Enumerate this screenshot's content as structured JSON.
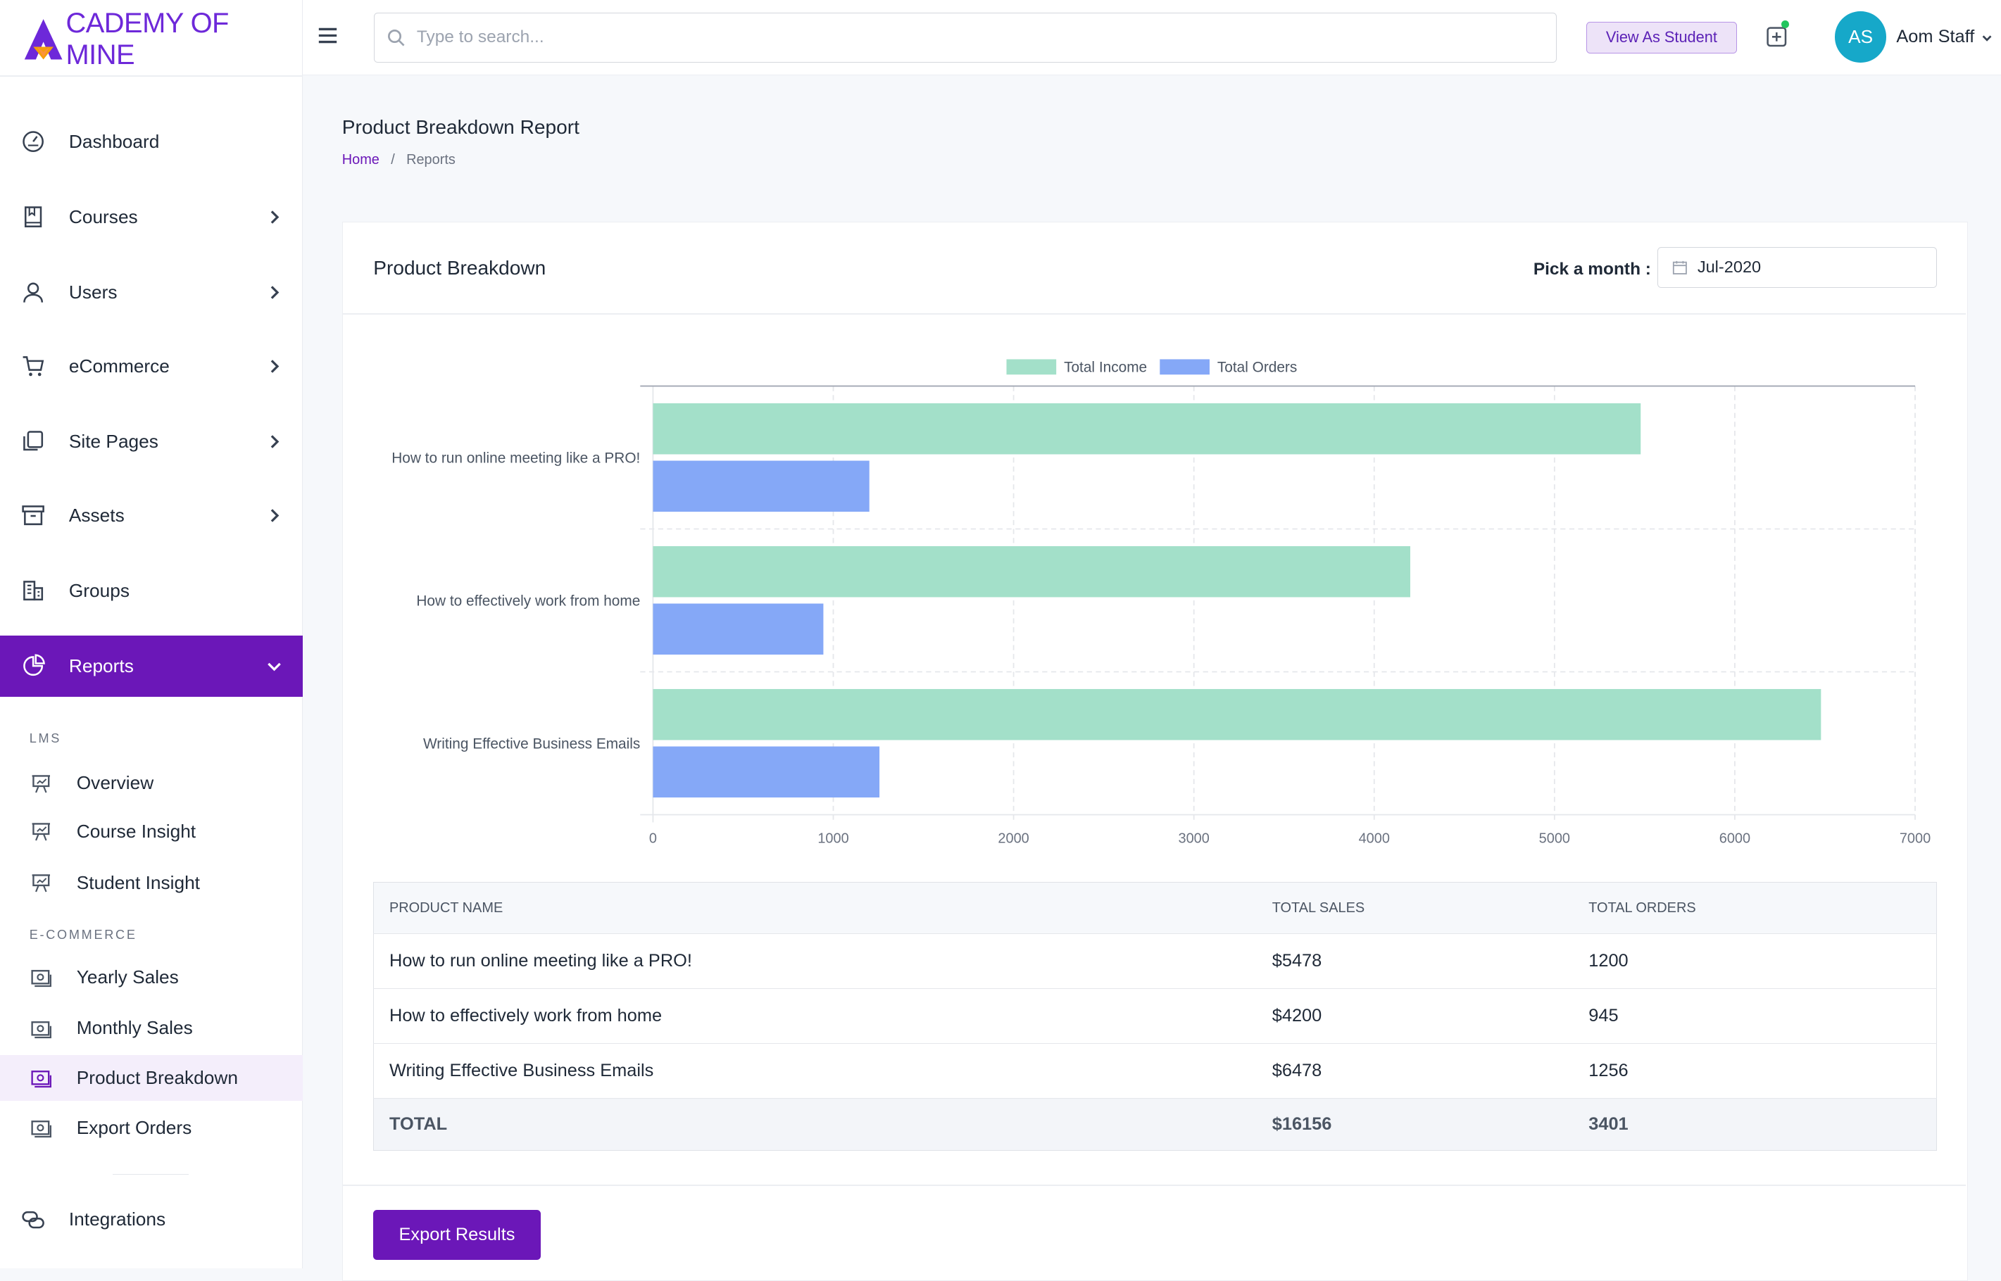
{
  "brand": {
    "logo_text": "CADEMY OF MINE",
    "colors": {
      "primary": "#6b17b8",
      "income": "#a3e0c9",
      "orders": "#85a8f7",
      "avatar": "#16a8c9"
    }
  },
  "topbar": {
    "search_placeholder": "Type to search...",
    "view_as_student": "View As Student",
    "avatar_initials": "AS",
    "user_name": "Aom Staff"
  },
  "sidebar": {
    "items": [
      {
        "label": "Dashboard",
        "icon": "dashboard-icon"
      },
      {
        "label": "Courses",
        "icon": "book-icon"
      },
      {
        "label": "Users",
        "icon": "user-icon"
      },
      {
        "label": "eCommerce",
        "icon": "cart-icon"
      },
      {
        "label": "Site Pages",
        "icon": "pages-icon"
      },
      {
        "label": "Assets",
        "icon": "archive-icon"
      },
      {
        "label": "Groups",
        "icon": "building-icon"
      },
      {
        "label": "Reports",
        "icon": "pie-chart-icon"
      }
    ],
    "lms_label": "LMS",
    "lms_items": [
      {
        "label": "Overview"
      },
      {
        "label": "Course Insight"
      },
      {
        "label": "Student Insight"
      }
    ],
    "ecommerce_label": "E-COMMERCE",
    "ecommerce_items": [
      {
        "label": "Yearly Sales"
      },
      {
        "label": "Monthly Sales"
      },
      {
        "label": "Product Breakdown"
      },
      {
        "label": "Export Orders"
      }
    ],
    "integrations": "Integrations"
  },
  "page": {
    "title": "Product Breakdown Report",
    "breadcrumb": {
      "home": "Home",
      "separator": "/",
      "current": "Reports"
    }
  },
  "card": {
    "title": "Product Breakdown",
    "pick_label": "Pick a month :",
    "month_value": "Jul-2020",
    "export_label": "Export Results"
  },
  "chart_data": {
    "type": "bar",
    "orientation": "horizontal",
    "categories": [
      "How to run online meeting like a PRO!",
      "How to effectively work from home",
      "Writing Effective Business Emails"
    ],
    "series": [
      {
        "name": "Total Income",
        "values": [
          5478,
          4200,
          6478
        ],
        "color": "#a3e0c9"
      },
      {
        "name": "Total Orders",
        "values": [
          1200,
          945,
          1256
        ],
        "color": "#85a8f7"
      }
    ],
    "xlim": [
      0,
      7000
    ],
    "xticks": [
      "0",
      "1000",
      "2000",
      "3000",
      "4000",
      "5000",
      "6000",
      "7000"
    ],
    "legend": "top",
    "grid": true
  },
  "table": {
    "headers": [
      "PRODUCT NAME",
      "TOTAL SALES",
      "TOTAL ORDERS"
    ],
    "rows": [
      [
        "How to run online meeting like a PRO!",
        "$5478",
        "1200"
      ],
      [
        "How to effectively work from home",
        "$4200",
        "945"
      ],
      [
        "Writing Effective Business Emails",
        "$6478",
        "1256"
      ]
    ],
    "total": [
      "TOTAL",
      "$16156",
      "3401"
    ]
  }
}
